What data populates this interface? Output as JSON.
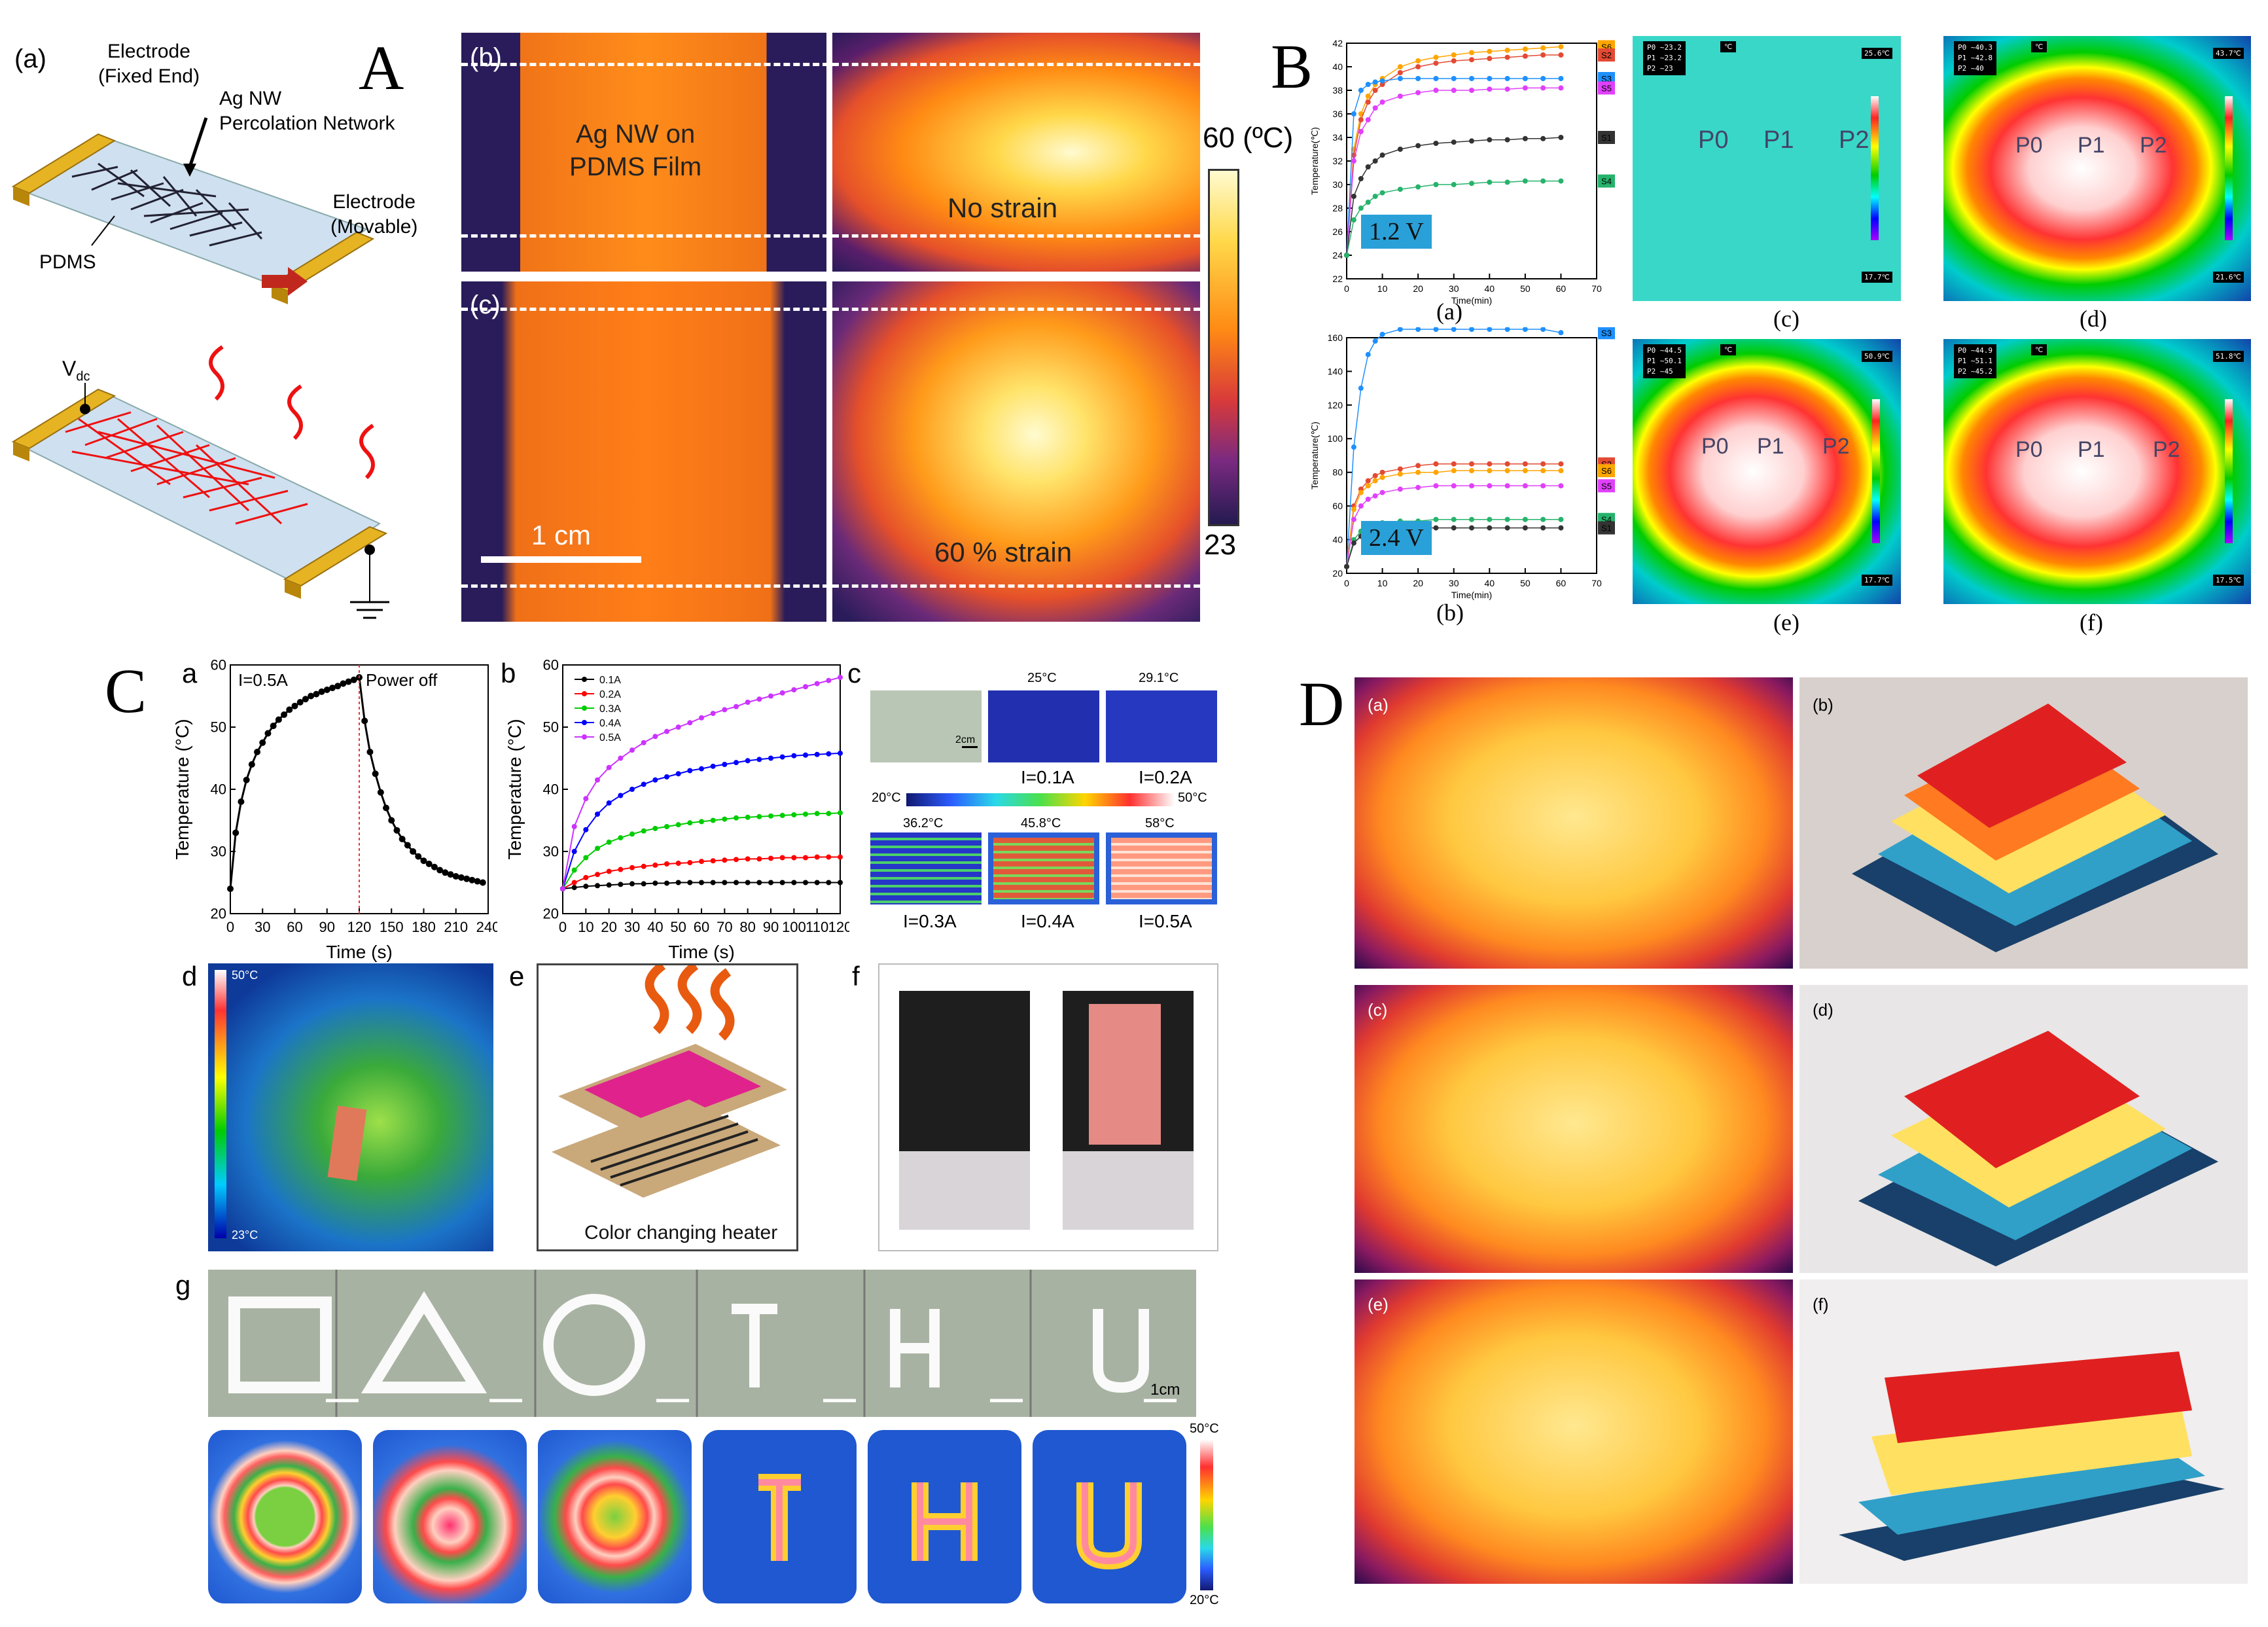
{
  "panel_A": {
    "letter": "A",
    "sub_a": "(a)",
    "sub_b": "(b)",
    "sub_c": "(c)",
    "electrode_fixed": [
      "Electrode",
      "(Fixed End)"
    ],
    "agnw_network": [
      "Ag NW",
      "Percolation Network"
    ],
    "electrode_movable": [
      "Electrode",
      "(Movable)"
    ],
    "pdms": "PDMS",
    "vdc_main": "V",
    "vdc_sub": "dc",
    "film_label": [
      "Ag NW on",
      "PDMS Film"
    ],
    "no_strain": "No strain",
    "strain_60": "60 % strain",
    "scale_bar": "1 cm",
    "cbar_max": "60 (ºC)",
    "cbar_min": "23"
  },
  "panel_B": {
    "letter": "B",
    "voltage_top": "1.2 V",
    "voltage_bottom": "2.4 V",
    "ylabel": "Temperature(℃)",
    "xlabel": "Time(min)",
    "captions": [
      "(a)",
      "(b)",
      "(c)",
      "(d)",
      "(e)",
      "(f)"
    ],
    "point_labels": [
      "P0",
      "P1",
      "P2"
    ],
    "ir_panels": [
      {
        "id": "c",
        "max": "25.6℃",
        "min": "17.7℃",
        "readings": [
          "P0 ~23.2",
          "P1 ~23.2",
          "P2 ~23"
        ]
      },
      {
        "id": "d",
        "max": "43.7℃",
        "min": "21.6℃",
        "readings": [
          "P0 ~40.3",
          "P1 ~42.8",
          "P2 ~40"
        ]
      },
      {
        "id": "e",
        "max": "50.9℃",
        "min": "17.7℃",
        "readings": [
          "P0 ~44.5",
          "P1 ~50.1",
          "P2 ~45"
        ]
      },
      {
        "id": "f",
        "max": "51.8℃",
        "min": "17.5℃",
        "readings": [
          "P0 ~44.9",
          "P1 ~51.1",
          "P2 ~45.2"
        ]
      }
    ],
    "unit_box": "℃"
  },
  "panel_C": {
    "letter": "C",
    "sub_a": "a",
    "sub_b": "b",
    "sub_c": "c",
    "sub_d": "d",
    "sub_e": "e",
    "sub_f": "f",
    "sub_g": "g",
    "current_label": "I=0.5A",
    "power_off": "Power off",
    "ylabel": "Temperature (°C)",
    "xlabel": "Time (s)",
    "heater_caption": "Color changing heater",
    "thermal_row1": [
      "25°C",
      "29.1°C"
    ],
    "thermal_row2": [
      "36.2°C",
      "45.8°C",
      "58°C"
    ],
    "current_row1": [
      "I=0.1A",
      "I=0.2A"
    ],
    "current_row2": [
      "I=0.3A",
      "I=0.4A",
      "I=0.5A"
    ],
    "cbar_min": "20°C",
    "cbar_max": "50°C",
    "scale_2cm": "2cm",
    "d_cbar_max": "50°C",
    "d_cbar_min": "23°C",
    "g_scale": "1cm",
    "g_cbar_max": "50°C",
    "g_cbar_min": "20°C"
  },
  "panel_D": {
    "letter": "D",
    "sub_labels": [
      "(a)",
      "(b)",
      "(c)",
      "(d)",
      "(e)",
      "(f)"
    ]
  },
  "chart_data": [
    {
      "id": "B-a",
      "type": "line",
      "ylabel": "Temperature(℃)",
      "xlabel": "Time(min)",
      "xlim": [
        0,
        70
      ],
      "ylim": [
        22,
        42
      ],
      "xticks": [
        0,
        10,
        20,
        30,
        40,
        50,
        60,
        70
      ],
      "yticks": [
        22,
        24,
        26,
        28,
        30,
        32,
        34,
        36,
        38,
        40,
        42
      ],
      "x": [
        0,
        2,
        4,
        6,
        8,
        10,
        15,
        20,
        25,
        30,
        35,
        40,
        45,
        50,
        55,
        60
      ],
      "series": [
        {
          "name": "S6",
          "color": "#ffa500",
          "values": [
            24,
            33,
            36,
            37.5,
            38.5,
            39,
            40,
            40.5,
            40.8,
            41,
            41.2,
            41.3,
            41.4,
            41.5,
            41.6,
            41.7
          ]
        },
        {
          "name": "S2",
          "color": "#e34a33",
          "values": [
            24,
            32.5,
            35.5,
            37,
            38,
            38.5,
            39.5,
            40,
            40.3,
            40.5,
            40.6,
            40.7,
            40.8,
            40.9,
            41,
            41
          ]
        },
        {
          "name": "S3",
          "color": "#1e90ff",
          "values": [
            24,
            36,
            38,
            38.5,
            38.7,
            38.8,
            39,
            39,
            39,
            39,
            39,
            39,
            39,
            39,
            39,
            39
          ]
        },
        {
          "name": "S5",
          "color": "#e040fb",
          "values": [
            24,
            32,
            34.5,
            35.5,
            36.5,
            37,
            37.5,
            37.8,
            38,
            38,
            38,
            38.1,
            38.1,
            38.2,
            38.2,
            38.2
          ]
        },
        {
          "name": "S1",
          "color": "#333333",
          "values": [
            24,
            29,
            30.5,
            31.5,
            32,
            32.5,
            33,
            33.3,
            33.5,
            33.6,
            33.7,
            33.8,
            33.8,
            33.9,
            33.9,
            34
          ]
        },
        {
          "name": "S4",
          "color": "#26b36b",
          "values": [
            24,
            27,
            28,
            28.5,
            29,
            29.3,
            29.6,
            29.8,
            30,
            30,
            30.1,
            30.2,
            30.2,
            30.3,
            30.3,
            30.3
          ]
        }
      ]
    },
    {
      "id": "B-b",
      "type": "line",
      "ylabel": "Temperature(℃)",
      "xlabel": "Time(min)",
      "xlim": [
        0,
        70
      ],
      "ylim": [
        20,
        160
      ],
      "xticks": [
        0,
        10,
        20,
        30,
        40,
        50,
        60,
        70
      ],
      "yticks": [
        20,
        40,
        60,
        80,
        100,
        120,
        140,
        160
      ],
      "x": [
        0,
        2,
        4,
        6,
        8,
        10,
        15,
        20,
        25,
        30,
        35,
        40,
        45,
        50,
        55,
        60
      ],
      "series": [
        {
          "name": "S3",
          "color": "#1e90ff",
          "values": [
            24,
            95,
            130,
            150,
            158,
            162,
            165,
            165,
            165,
            165,
            165,
            165,
            165,
            165,
            165,
            163
          ]
        },
        {
          "name": "S2",
          "color": "#e34a33",
          "values": [
            24,
            60,
            70,
            75,
            78,
            80,
            82,
            84,
            85,
            85,
            85,
            85,
            85,
            85,
            85,
            85
          ]
        },
        {
          "name": "S6",
          "color": "#ffa500",
          "values": [
            24,
            58,
            68,
            72,
            75,
            77,
            79,
            80,
            80,
            81,
            81,
            81,
            81,
            81,
            81,
            81
          ]
        },
        {
          "name": "S5",
          "color": "#e040fb",
          "values": [
            24,
            52,
            60,
            64,
            66,
            68,
            70,
            71,
            72,
            72,
            72,
            72,
            72,
            72,
            72,
            72
          ]
        },
        {
          "name": "S4",
          "color": "#26b36b",
          "values": [
            24,
            40,
            45,
            48,
            49,
            50,
            51,
            51,
            52,
            52,
            52,
            52,
            52,
            52,
            52,
            52
          ]
        },
        {
          "name": "S1",
          "color": "#333333",
          "values": [
            24,
            38,
            42,
            44,
            45,
            46,
            47,
            47,
            47,
            47,
            47,
            47,
            47,
            47,
            47,
            47
          ]
        }
      ]
    },
    {
      "id": "C-a",
      "type": "line",
      "ylabel": "Temperature (°C)",
      "xlabel": "Time (s)",
      "xlim": [
        0,
        240
      ],
      "ylim": [
        20,
        60
      ],
      "xticks": [
        0,
        30,
        60,
        90,
        120,
        150,
        180,
        210,
        240
      ],
      "yticks": [
        20,
        30,
        40,
        50,
        60
      ],
      "x": [
        0,
        5,
        10,
        15,
        20,
        25,
        30,
        35,
        40,
        45,
        50,
        55,
        60,
        65,
        70,
        75,
        80,
        85,
        90,
        95,
        100,
        105,
        110,
        115,
        120,
        125,
        130,
        135,
        140,
        145,
        150,
        155,
        160,
        165,
        170,
        175,
        180,
        185,
        190,
        195,
        200,
        205,
        210,
        215,
        220,
        225,
        230,
        235
      ],
      "series": [
        {
          "name": "",
          "color": "#000000",
          "values": [
            24,
            33,
            38,
            41.5,
            44,
            46,
            47.5,
            49,
            50.2,
            51.2,
            52,
            52.8,
            53.4,
            54,
            54.5,
            55,
            55.3,
            55.7,
            56,
            56.3,
            56.6,
            57,
            57.3,
            57.6,
            58,
            51,
            46,
            42.5,
            39.5,
            37,
            35,
            33.4,
            32,
            31,
            30,
            29.2,
            28.5,
            28,
            27.5,
            27,
            26.6,
            26.3,
            26,
            25.8,
            25.6,
            25.4,
            25.2,
            25
          ]
        }
      ]
    },
    {
      "id": "C-b",
      "type": "line",
      "ylabel": "Temperature (°C)",
      "xlabel": "Time (s)",
      "xlim": [
        0,
        120
      ],
      "ylim": [
        20,
        60
      ],
      "xticks": [
        0,
        10,
        20,
        30,
        40,
        50,
        60,
        70,
        80,
        90,
        100,
        110,
        120
      ],
      "yticks": [
        20,
        30,
        40,
        50,
        60
      ],
      "x": [
        0,
        5,
        10,
        15,
        20,
        25,
        30,
        35,
        40,
        45,
        50,
        55,
        60,
        65,
        70,
        75,
        80,
        85,
        90,
        95,
        100,
        105,
        110,
        115,
        120
      ],
      "series": [
        {
          "name": "0.1A",
          "color": "#000000",
          "values": [
            24,
            24.2,
            24.4,
            24.5,
            24.6,
            24.7,
            24.8,
            24.8,
            24.9,
            24.9,
            25,
            25,
            25,
            25,
            25,
            25,
            25,
            25,
            25,
            25,
            25,
            25,
            25,
            25,
            25
          ]
        },
        {
          "name": "0.2A",
          "color": "#ff0000",
          "values": [
            24,
            25,
            25.8,
            26.3,
            26.8,
            27.1,
            27.4,
            27.6,
            27.8,
            28,
            28.1,
            28.2,
            28.4,
            28.5,
            28.6,
            28.7,
            28.8,
            28.8,
            28.9,
            29,
            29,
            29,
            29.1,
            29.1,
            29.1
          ]
        },
        {
          "name": "0.3A",
          "color": "#00cc00",
          "values": [
            24,
            27,
            29,
            30.5,
            31.5,
            32.2,
            32.8,
            33.3,
            33.7,
            34,
            34.3,
            34.6,
            34.8,
            35,
            35.2,
            35.4,
            35.5,
            35.6,
            35.7,
            35.8,
            35.9,
            36,
            36.1,
            36.1,
            36.2
          ]
        },
        {
          "name": "0.4A",
          "color": "#0000ff",
          "values": [
            24,
            30,
            33.5,
            36,
            37.8,
            39,
            40,
            40.8,
            41.5,
            42,
            42.5,
            43,
            43.3,
            43.7,
            44,
            44.3,
            44.6,
            44.8,
            45,
            45.2,
            45.4,
            45.5,
            45.6,
            45.7,
            45.8
          ]
        },
        {
          "name": "0.5A",
          "color": "#cc33ff",
          "values": [
            24,
            34,
            38.5,
            41.5,
            43.5,
            45,
            46.3,
            47.5,
            48.5,
            49.3,
            50,
            50.7,
            51.5,
            52.2,
            52.8,
            53.3,
            54,
            54.5,
            55,
            55.5,
            56,
            56.5,
            57,
            57.5,
            58
          ]
        }
      ]
    }
  ]
}
